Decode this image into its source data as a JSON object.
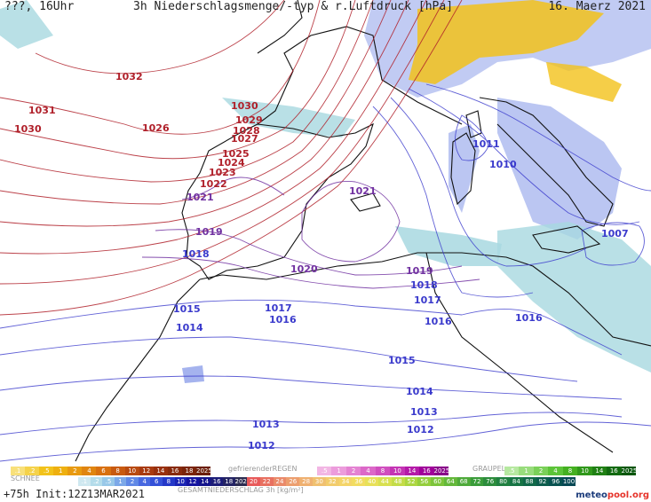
{
  "header": {
    "left": "???, 16Uhr",
    "title": "3h Niederschlagsmenge/-typ & r.Luftdruck [hPa]",
    "date": "16. Maerz 2021"
  },
  "isobars": {
    "red": [
      "1032",
      "1031",
      "1030",
      "1030",
      "1029",
      "1028",
      "1027",
      "1026",
      "1025",
      "1024",
      "1023",
      "1022"
    ],
    "purple": [
      "1021",
      "1021",
      "1020",
      "1019",
      "1019",
      "1018",
      "1018",
      "1017",
      "1017"
    ],
    "blue": [
      "1016",
      "1016",
      "1016",
      "1015",
      "1015",
      "1014",
      "1014",
      "1013",
      "1013",
      "1012",
      "1012",
      "1011",
      "1010",
      "1007"
    ]
  },
  "legend": {
    "rain_label": "gefrierenderREGEN",
    "rain_values": [
      ".1",
      ".2",
      ".5",
      "1",
      "2",
      "4",
      "6",
      "8",
      "10",
      "12",
      "14",
      "16",
      "18",
      "2025+"
    ],
    "freezing_values": [
      ".5",
      "1",
      "2",
      "4",
      "8",
      "10",
      "14",
      "16",
      "2025+"
    ],
    "graupel_label": "GRAUPEL",
    "graupel_values": [
      ".5",
      "1",
      "2",
      "4",
      "8",
      "10",
      "14",
      "16",
      "2025+"
    ],
    "snow_label": "SCHNEE",
    "snow_values": [
      ".1",
      ".2",
      ".5",
      "1",
      "2",
      "4",
      "6",
      "8",
      "10",
      "12",
      "14",
      "16",
      "18",
      "2025+"
    ],
    "total_label": "GESAMTNIEDERSCHLAG 3h [kg/m²]",
    "total_values": [
      "20",
      "22",
      "24",
      "26",
      "28",
      "30",
      "32",
      "34",
      "36",
      "40",
      "44",
      "48",
      "52",
      "56",
      "60",
      "64",
      "68",
      "72",
      "76",
      "80",
      "84",
      "88",
      "92",
      "96",
      "100"
    ]
  },
  "footer": {
    "forecast": "+75h Init:12Z13MAR2021"
  },
  "brand": {
    "name_left": "meteo",
    "name_right": "pool.org"
  },
  "colors": {
    "high_isobar": "#b0202a",
    "mid_isobar": "#7030a0",
    "low_isobar": "#3a3acc",
    "precip_light": "#a8d8e0",
    "precip_blue": "#8ea0ea",
    "precip_yellow": "#f2c21a",
    "precip_orange": "#e89a10"
  }
}
